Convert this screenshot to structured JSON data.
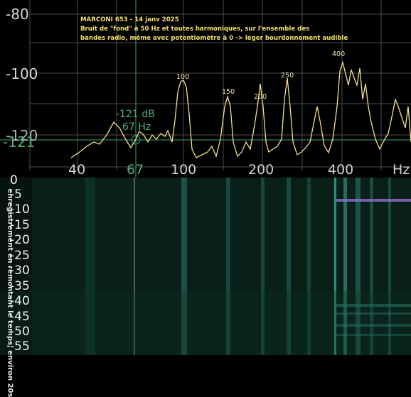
{
  "spectrum": {
    "y_labels": [
      "-80",
      "-100",
      "-120",
      "-121"
    ],
    "x_labels": [
      "40",
      "67",
      "100",
      "200",
      "400",
      "Hz"
    ],
    "annotation_lines": [
      "MARCONI 653 - 14 janv 2025",
      "Bruit de \"fond\" à 50 Hz et toutes harmoniques, sur l'ensemble des",
      "bandes radio, même avec potentiomètre à 0    -> léger bourdonnement audible"
    ],
    "peak_labels": [
      "100",
      "150",
      "200",
      "250",
      "400"
    ],
    "cursor_db": "-121 dB",
    "cursor_freq": "67 Hz",
    "colors": {
      "trace": "#f3e08a",
      "grid": "#4d4d4d",
      "cursor": "#3aa17a",
      "annotation": "#f4e06a"
    }
  },
  "waterfall": {
    "time_labels": [
      "0",
      "-5",
      "-10",
      "-15",
      "-20",
      "-25",
      "-30",
      "-35",
      "-40",
      "-45",
      "-50",
      "-55"
    ],
    "side_caption": "enregistrement en remontant le temps, environ 20s",
    "colors": {
      "base": "#06140f",
      "line": "#2f8f7e",
      "highlight": "#8f6fd6"
    }
  }
}
